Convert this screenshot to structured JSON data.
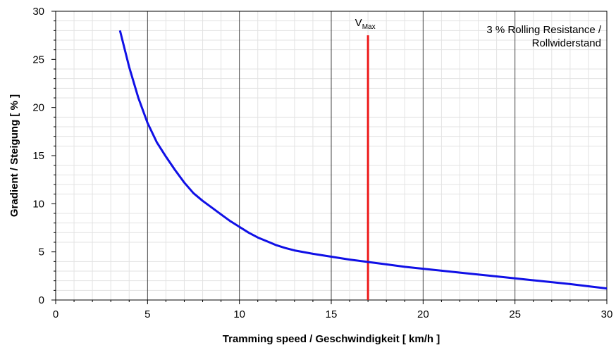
{
  "chart_data": {
    "type": "line",
    "xlabel": "Tramming speed / Geschwindigkeit [ km/h ]",
    "ylabel": "Gradient / Steigung [ % ]",
    "xlim": [
      0,
      30
    ],
    "ylim": [
      0,
      30
    ],
    "x_ticks": [
      "0",
      "5",
      "10",
      "15",
      "20",
      "25",
      "30"
    ],
    "y_ticks": [
      "0",
      "5",
      "10",
      "15",
      "20",
      "25",
      "30"
    ],
    "grid": true,
    "annotation": {
      "line1": "3 % Rolling Resistance /",
      "line2": "Rollwiderstand"
    },
    "vmax": {
      "label_main": "V",
      "label_sub": "Max",
      "x": 17,
      "y_top": 27.5,
      "color": "#ee1c1c"
    },
    "series": [
      {
        "color": "#1010e6",
        "points": [
          [
            3.5,
            28.0
          ],
          [
            4.0,
            24.2
          ],
          [
            4.5,
            21.0
          ],
          [
            5.0,
            18.4
          ],
          [
            5.5,
            16.4
          ],
          [
            6.0,
            14.9
          ],
          [
            6.5,
            13.5
          ],
          [
            7.0,
            12.2
          ],
          [
            7.5,
            11.1
          ],
          [
            8.0,
            10.3
          ],
          [
            8.5,
            9.6
          ],
          [
            9.0,
            8.9
          ],
          [
            9.5,
            8.2
          ],
          [
            10.0,
            7.6
          ],
          [
            10.5,
            7.0
          ],
          [
            11.0,
            6.5
          ],
          [
            11.5,
            6.1
          ],
          [
            12.0,
            5.7
          ],
          [
            12.5,
            5.4
          ],
          [
            13.0,
            5.15
          ],
          [
            14.0,
            4.8
          ],
          [
            15.0,
            4.5
          ],
          [
            16.0,
            4.2
          ],
          [
            17.0,
            3.95
          ],
          [
            18.0,
            3.7
          ],
          [
            19.0,
            3.45
          ],
          [
            20.0,
            3.25
          ],
          [
            22.0,
            2.85
          ],
          [
            24.0,
            2.45
          ],
          [
            26.0,
            2.05
          ],
          [
            28.0,
            1.65
          ],
          [
            30.0,
            1.2
          ]
        ]
      }
    ]
  }
}
